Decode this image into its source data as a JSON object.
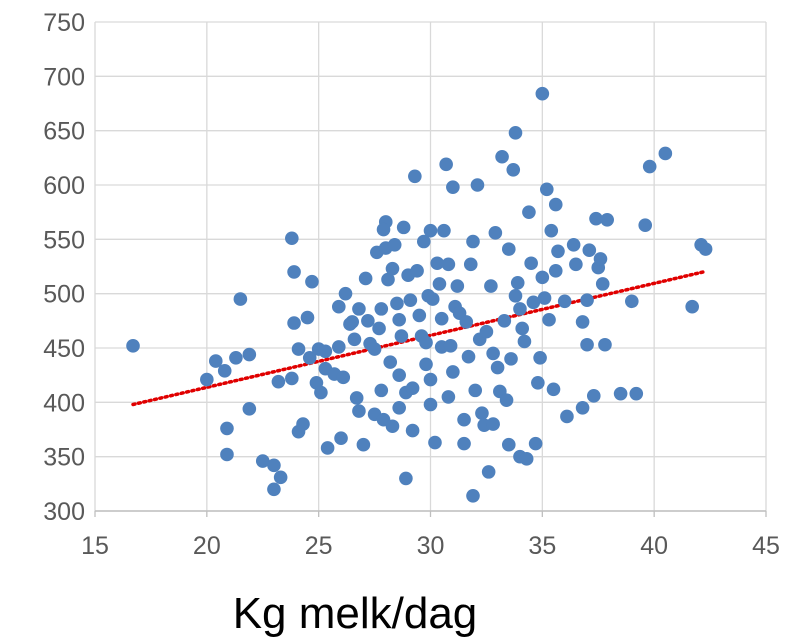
{
  "chart_data": {
    "type": "scatter",
    "title": "",
    "xlabel": "Kg melk/dag",
    "ylabel": "",
    "xlim": [
      15,
      45
    ],
    "ylim": [
      300,
      750
    ],
    "x_ticks": [
      15,
      20,
      25,
      30,
      35,
      40,
      45
    ],
    "y_ticks": [
      300,
      350,
      400,
      450,
      500,
      550,
      600,
      650,
      700,
      750
    ],
    "x_tick_labels": [
      "15",
      "20",
      "25",
      "30",
      "35",
      "40",
      "45"
    ],
    "y_tick_labels": [
      "300",
      "350",
      "400",
      "450",
      "500",
      "550",
      "600",
      "650",
      "700",
      "750"
    ],
    "grid": "vertical and horizontal major gridlines",
    "legend": "none",
    "colors": {
      "points": "#4F81BD",
      "trendline": "#E00000",
      "grid": "#D9D9D9"
    },
    "trendline": {
      "style": "dotted",
      "x": [
        16.7,
        42.2
      ],
      "y": [
        398,
        520
      ]
    },
    "series": [
      {
        "points": [
          [
            16.7,
            452
          ],
          [
            20,
            421
          ],
          [
            20.4,
            438
          ],
          [
            20.8,
            429
          ],
          [
            20.9,
            376
          ],
          [
            21.3,
            441
          ],
          [
            21.5,
            495
          ],
          [
            21.9,
            444
          ],
          [
            21.9,
            394
          ],
          [
            20.9,
            352
          ],
          [
            22.5,
            346
          ],
          [
            23,
            342
          ],
          [
            23,
            320
          ],
          [
            23.3,
            331
          ],
          [
            23.2,
            419
          ],
          [
            23.8,
            422
          ],
          [
            23.8,
            551
          ],
          [
            23.9,
            520
          ],
          [
            23.9,
            473
          ],
          [
            24.1,
            449
          ],
          [
            24.3,
            380
          ],
          [
            24.5,
            478
          ],
          [
            24.6,
            441
          ],
          [
            24.7,
            511
          ],
          [
            24.9,
            418
          ],
          [
            25,
            449
          ],
          [
            25.1,
            409
          ],
          [
            25.3,
            431
          ],
          [
            25.4,
            358
          ],
          [
            25.7,
            426
          ],
          [
            25.9,
            488
          ],
          [
            25.9,
            451
          ],
          [
            26,
            367
          ],
          [
            26.1,
            423
          ],
          [
            26.2,
            500
          ],
          [
            26.4,
            472
          ],
          [
            26.6,
            458
          ],
          [
            26.7,
            404
          ],
          [
            26.8,
            392
          ],
          [
            27,
            361
          ],
          [
            27.1,
            514
          ],
          [
            27.2,
            475
          ],
          [
            27.3,
            454
          ],
          [
            27.5,
            389
          ],
          [
            27.6,
            538
          ],
          [
            27.7,
            468
          ],
          [
            27.8,
            411
          ],
          [
            27.8,
            486
          ],
          [
            27.9,
            384
          ],
          [
            28,
            542
          ],
          [
            28,
            566
          ],
          [
            28.1,
            513
          ],
          [
            28.2,
            437
          ],
          [
            28.3,
            523
          ],
          [
            28.3,
            378
          ],
          [
            28.4,
            545
          ],
          [
            28.5,
            491
          ],
          [
            28.6,
            476
          ],
          [
            28.6,
            425
          ],
          [
            28.7,
            461
          ],
          [
            28.8,
            561
          ],
          [
            28.9,
            330
          ],
          [
            28.9,
            409
          ],
          [
            29,
            517
          ],
          [
            29.1,
            494
          ],
          [
            29.2,
            374
          ],
          [
            29.3,
            608
          ],
          [
            29.4,
            521
          ],
          [
            29.5,
            480
          ],
          [
            29.6,
            461
          ],
          [
            29.7,
            548
          ],
          [
            29.8,
            455
          ],
          [
            29.8,
            435
          ],
          [
            29.9,
            498
          ],
          [
            30,
            558
          ],
          [
            30,
            421
          ],
          [
            30,
            398
          ],
          [
            30.1,
            495
          ],
          [
            30.2,
            363
          ],
          [
            30.3,
            528
          ],
          [
            30.4,
            509
          ],
          [
            30.5,
            477
          ],
          [
            30.5,
            451
          ],
          [
            30.6,
            558
          ],
          [
            30.7,
            619
          ],
          [
            30.8,
            527
          ],
          [
            30.9,
            452
          ],
          [
            31,
            598
          ],
          [
            31,
            428
          ],
          [
            31.1,
            488
          ],
          [
            31.2,
            507
          ],
          [
            31.3,
            482
          ],
          [
            31.5,
            362
          ],
          [
            31.6,
            474
          ],
          [
            31.7,
            442
          ],
          [
            31.8,
            527
          ],
          [
            31.9,
            314
          ],
          [
            32,
            411
          ],
          [
            32.1,
            600
          ],
          [
            32.2,
            458
          ],
          [
            32.3,
            390
          ],
          [
            32.4,
            379
          ],
          [
            32.5,
            465
          ],
          [
            32.6,
            336
          ],
          [
            32.7,
            507
          ],
          [
            32.8,
            445
          ],
          [
            32.9,
            556
          ],
          [
            33,
            432
          ],
          [
            33.1,
            410
          ],
          [
            33.2,
            626
          ],
          [
            33.3,
            475
          ],
          [
            33.4,
            402
          ],
          [
            33.5,
            541
          ],
          [
            33.5,
            361
          ],
          [
            33.6,
            440
          ],
          [
            33.7,
            614
          ],
          [
            33.8,
            648
          ],
          [
            33.9,
            510
          ],
          [
            34,
            486
          ],
          [
            34,
            350
          ],
          [
            34.1,
            468
          ],
          [
            34.2,
            456
          ],
          [
            34.3,
            348
          ],
          [
            34.4,
            575
          ],
          [
            34.5,
            528
          ],
          [
            34.6,
            492
          ],
          [
            34.7,
            362
          ],
          [
            34.8,
            418
          ],
          [
            35,
            684
          ],
          [
            35,
            515
          ],
          [
            35.1,
            496
          ],
          [
            35.2,
            596
          ],
          [
            35.3,
            476
          ],
          [
            35.4,
            558
          ],
          [
            35.5,
            412
          ],
          [
            35.6,
            582
          ],
          [
            35.7,
            539
          ],
          [
            36,
            493
          ],
          [
            36.1,
            387
          ],
          [
            36.5,
            527
          ],
          [
            36.8,
            474
          ],
          [
            37,
            494
          ],
          [
            37,
            453
          ],
          [
            37.1,
            540
          ],
          [
            37.3,
            406
          ],
          [
            37.4,
            569
          ],
          [
            37.5,
            524
          ],
          [
            37.7,
            509
          ],
          [
            37.8,
            453
          ],
          [
            37.9,
            568
          ],
          [
            38.5,
            408
          ],
          [
            39,
            493
          ],
          [
            39.2,
            408
          ],
          [
            39.6,
            563
          ],
          [
            39.8,
            617
          ],
          [
            40.5,
            629
          ],
          [
            41.7,
            488
          ],
          [
            42.1,
            545
          ],
          [
            42.3,
            541
          ],
          [
            36.8,
            395
          ],
          [
            30.8,
            405
          ],
          [
            29.2,
            413
          ],
          [
            27.5,
            449
          ],
          [
            26.5,
            474
          ],
          [
            31.5,
            384
          ],
          [
            33.8,
            498
          ],
          [
            32.8,
            380
          ],
          [
            28.6,
            395
          ],
          [
            36.4,
            545
          ],
          [
            34.9,
            441
          ],
          [
            26.8,
            486
          ],
          [
            25.3,
            447
          ],
          [
            27.9,
            559
          ],
          [
            31.9,
            548
          ],
          [
            35.6,
            521
          ],
          [
            24.1,
            373
          ],
          [
            37.6,
            532
          ]
        ]
      }
    ]
  }
}
